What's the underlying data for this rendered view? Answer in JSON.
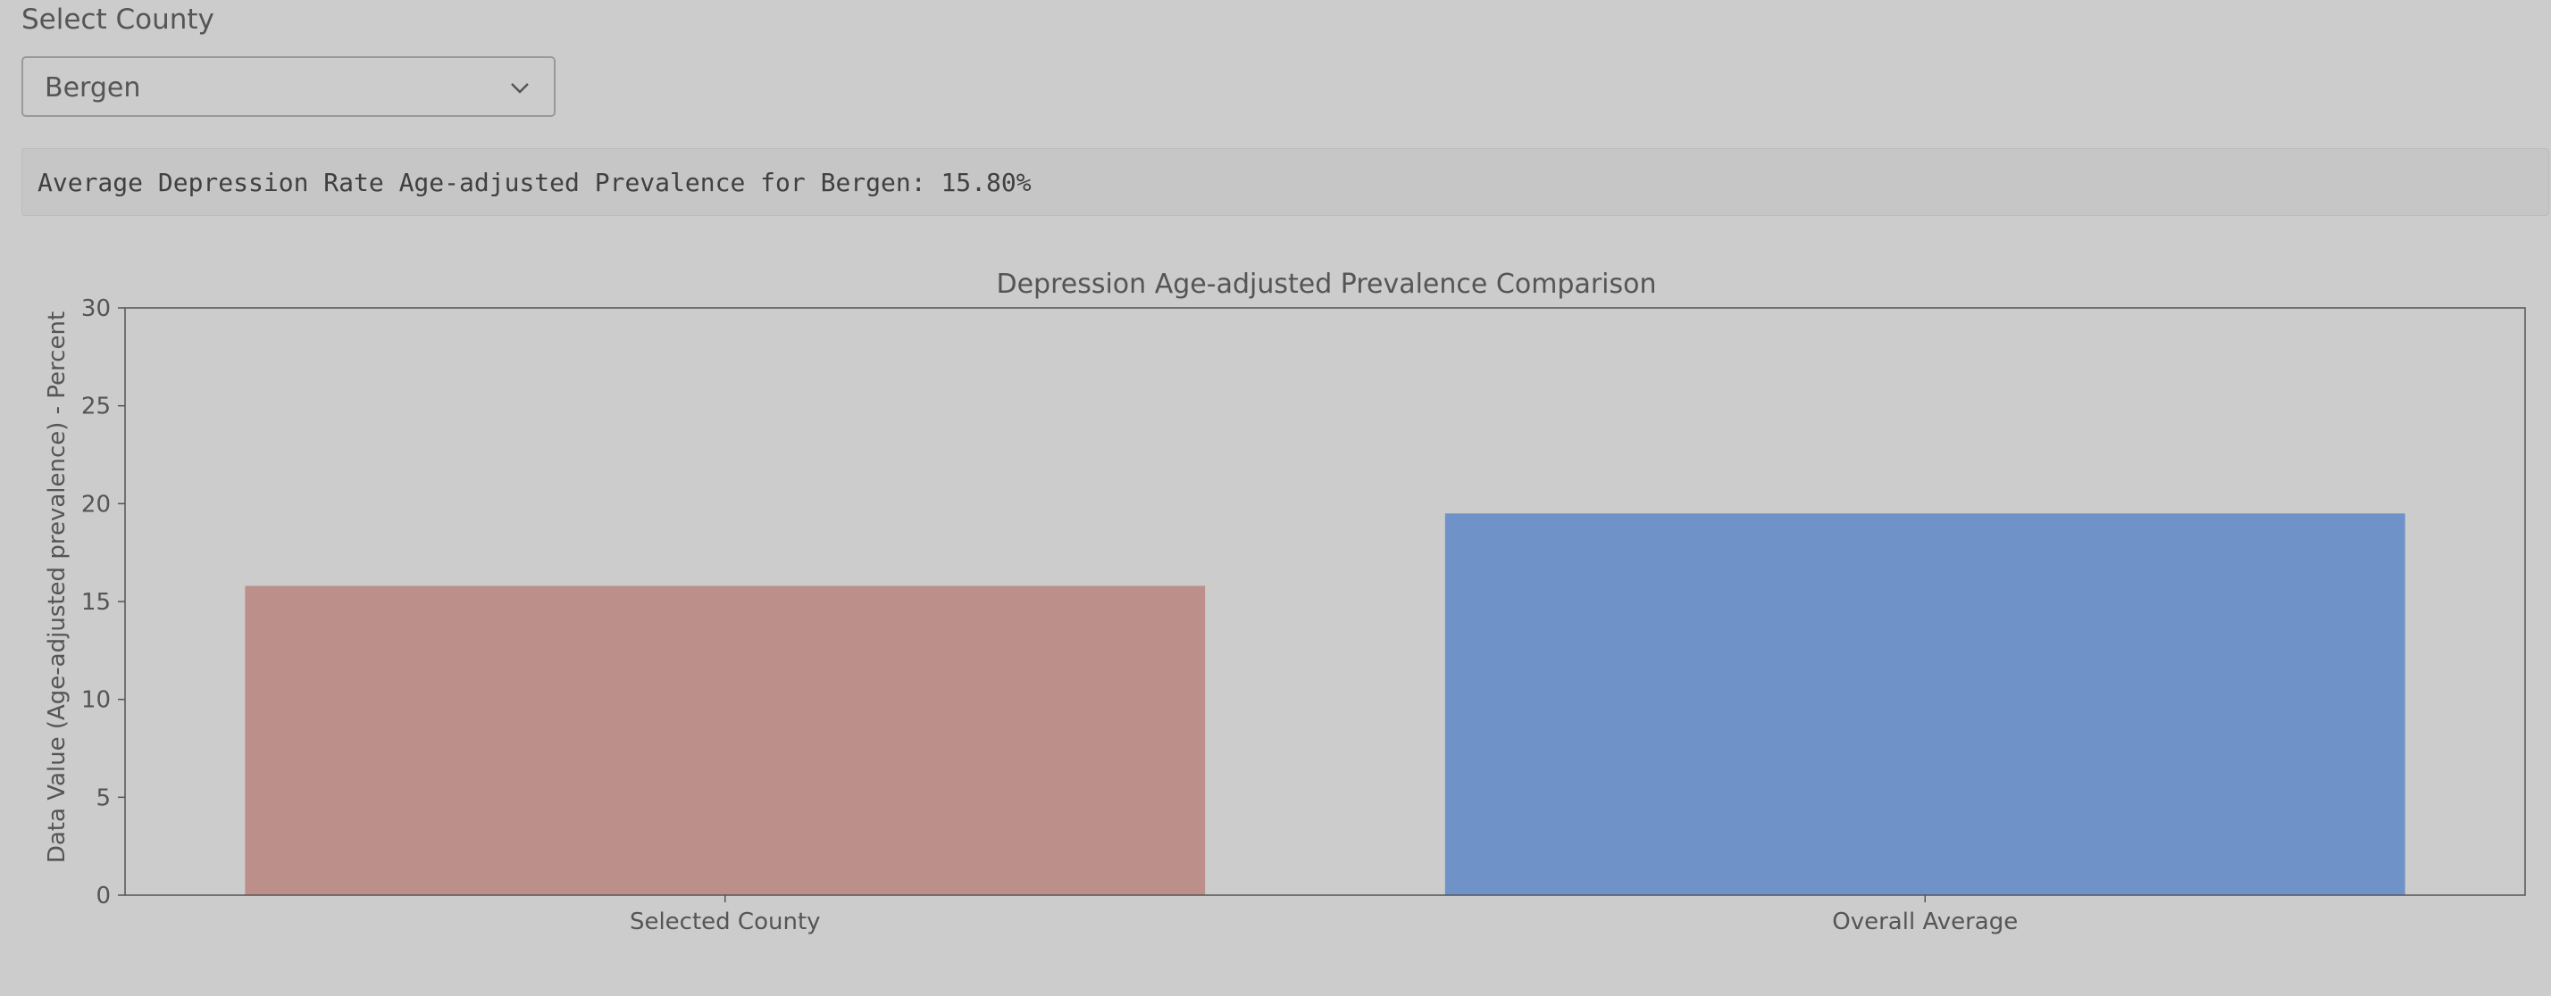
{
  "select": {
    "label": "Select County",
    "selected": "Bergen"
  },
  "output": {
    "text": "Average Depression Rate Age-adjusted Prevalence for Bergen: 15.80%"
  },
  "colors": {
    "background": "#cccccc",
    "selected_county_bar": "#bd8f8b",
    "overall_average_bar": "#6f93c9"
  },
  "chart_data": {
    "type": "bar",
    "title": "Depression Age-adjusted Prevalence Comparison",
    "xlabel": "",
    "ylabel": "Data Value (Age-adjusted prevalence) - Percent",
    "categories": [
      "Selected County",
      "Overall Average"
    ],
    "values": [
      15.8,
      19.5
    ],
    "colors": [
      "#bd8f8b",
      "#6f93c9"
    ],
    "ylim": [
      0,
      30
    ],
    "yticks": [
      0,
      5,
      10,
      15,
      20,
      25,
      30
    ],
    "grid": false,
    "legend": "none"
  }
}
